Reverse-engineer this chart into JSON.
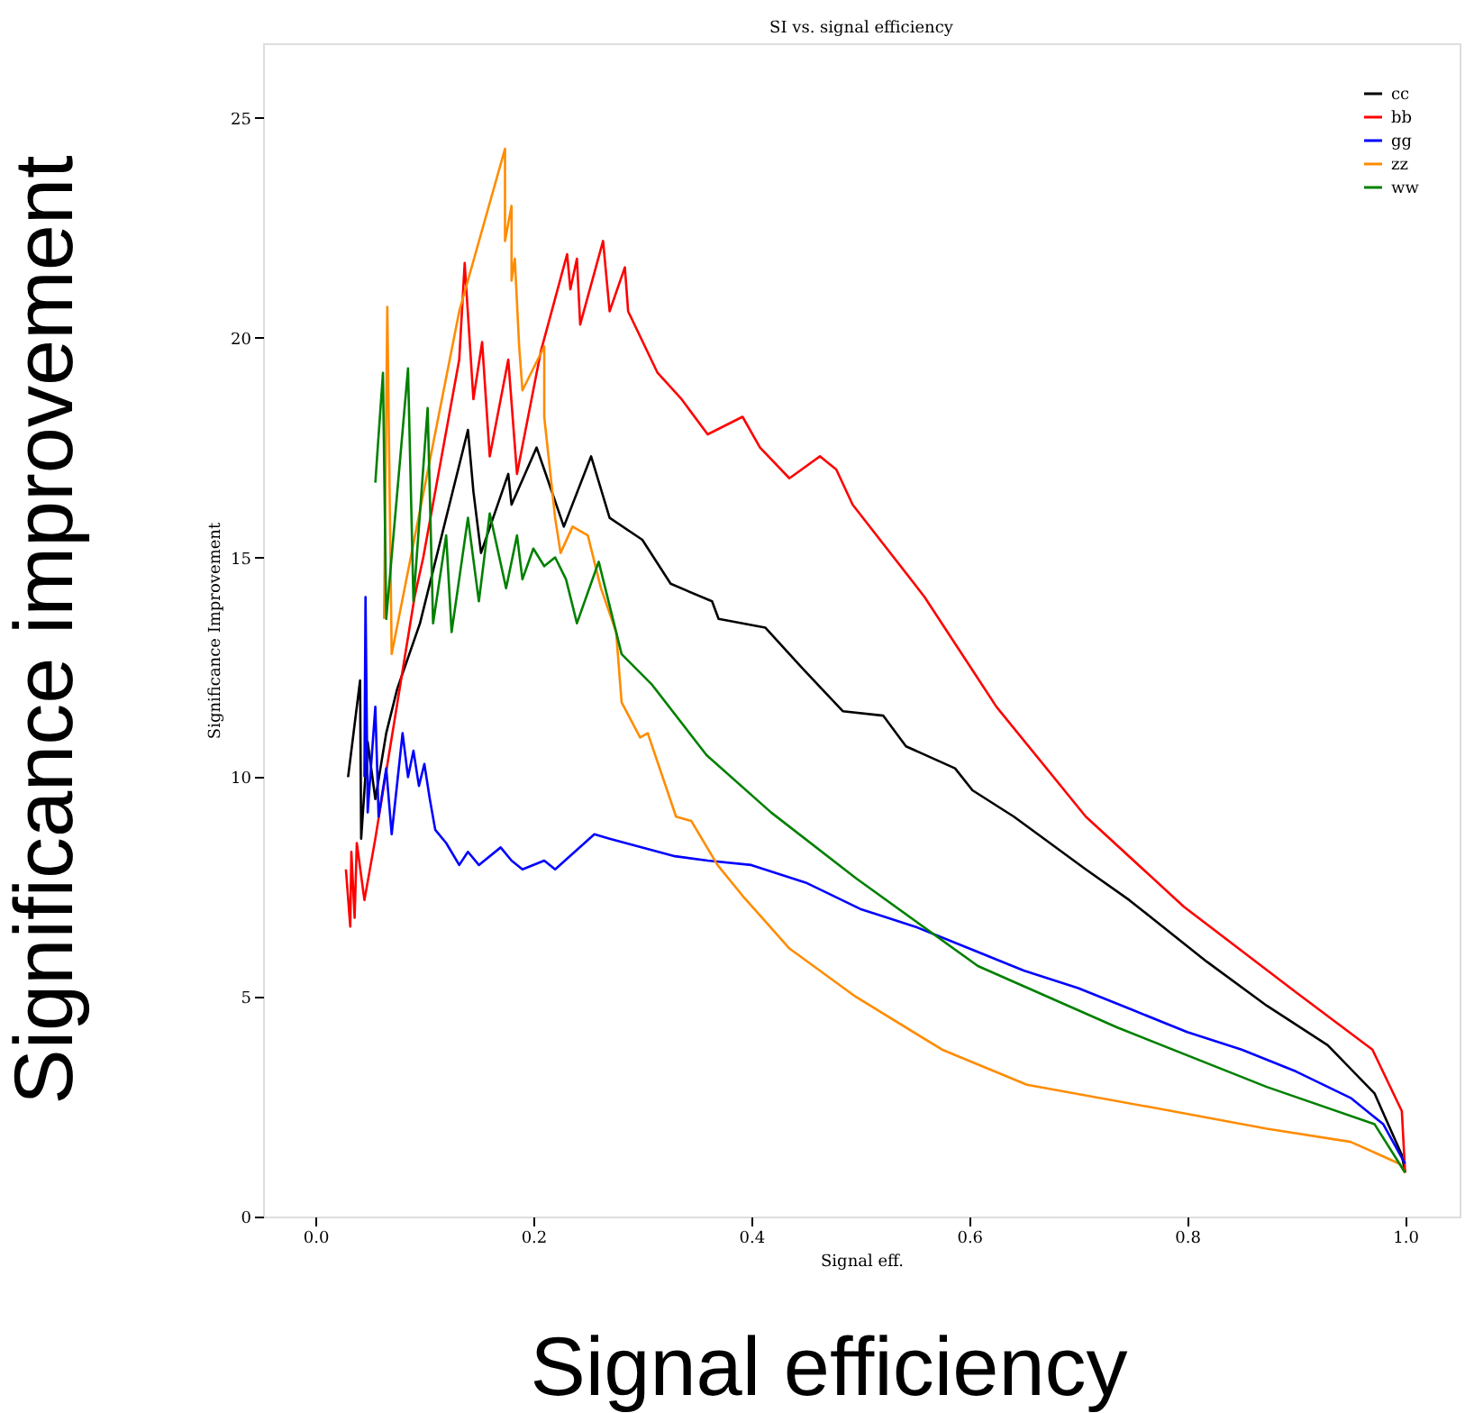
{
  "chart_data": {
    "type": "line",
    "title": "SI vs. signal efficiency",
    "xlabel": "Signal eff.",
    "ylabel": "Significance Improvement",
    "annotations": [
      "Significance improvement",
      "Signal efficiency"
    ],
    "xlim": [
      -0.048,
      1.05
    ],
    "ylim": [
      0,
      26.7
    ],
    "xticks": [
      {
        "value": 0,
        "label": "0.0"
      },
      {
        "value": 0.2,
        "label": "0.2"
      },
      {
        "value": 0.4,
        "label": "0.4"
      },
      {
        "value": 0.6,
        "label": "0.6"
      },
      {
        "value": 0.8,
        "label": "0.8"
      },
      {
        "value": 1,
        "label": "1.0"
      }
    ],
    "yticks": [
      0,
      5,
      10,
      15,
      20,
      25
    ],
    "grid": false,
    "legend": "top right",
    "marker": "none",
    "line_style": "solid",
    "series": [
      {
        "name": "cc",
        "color": "#000000",
        "x": [
          0.03,
          0.041,
          0.042,
          0.048,
          0.055,
          0.065,
          0.075,
          0.096,
          0.14,
          0.145,
          0.152,
          0.177,
          0.18,
          0.203,
          0.21,
          0.228,
          0.253,
          0.27,
          0.3,
          0.326,
          0.364,
          0.37,
          0.413,
          0.446,
          0.484,
          0.521,
          0.542,
          0.587,
          0.603,
          0.641,
          0.707,
          0.747,
          0.818,
          0.873,
          0.929,
          0.972,
          0.997,
          1.0
        ],
        "values": [
          10.0,
          12.2,
          8.6,
          10.8,
          9.5,
          11.0,
          12.0,
          13.5,
          17.9,
          16.5,
          15.1,
          16.9,
          16.2,
          17.5,
          17.0,
          15.7,
          17.3,
          15.9,
          15.4,
          14.4,
          14.0,
          13.6,
          13.4,
          12.5,
          11.5,
          11.4,
          10.7,
          10.2,
          9.7,
          9.1,
          7.9,
          7.2,
          5.8,
          4.8,
          3.9,
          2.8,
          1.4,
          1.0
        ]
      },
      {
        "name": "bb",
        "color": "#ff0000",
        "x": [
          0.028,
          0.032,
          0.033,
          0.036,
          0.038,
          0.045,
          0.055,
          0.091,
          0.099,
          0.132,
          0.137,
          0.145,
          0.153,
          0.16,
          0.177,
          0.185,
          0.207,
          0.231,
          0.234,
          0.24,
          0.243,
          0.264,
          0.27,
          0.284,
          0.287,
          0.314,
          0.336,
          0.36,
          0.392,
          0.408,
          0.435,
          0.463,
          0.478,
          0.493,
          0.559,
          0.625,
          0.707,
          0.797,
          0.9,
          0.97,
          0.997,
          1.0
        ],
        "values": [
          7.9,
          6.6,
          8.3,
          6.8,
          8.5,
          7.2,
          8.6,
          14.1,
          15.0,
          19.5,
          21.7,
          18.6,
          19.9,
          17.3,
          19.5,
          16.9,
          19.7,
          21.9,
          21.1,
          21.8,
          20.3,
          22.2,
          20.6,
          21.6,
          20.6,
          19.2,
          18.6,
          17.8,
          18.2,
          17.5,
          16.8,
          17.3,
          17.0,
          16.2,
          14.1,
          11.6,
          9.1,
          7.05,
          5.1,
          3.8,
          2.4,
          1.0
        ]
      },
      {
        "name": "gg",
        "color": "#0000ff",
        "x": [
          0.045,
          0.046,
          0.048,
          0.055,
          0.058,
          0.065,
          0.07,
          0.08,
          0.085,
          0.09,
          0.095,
          0.1,
          0.105,
          0.11,
          0.12,
          0.132,
          0.14,
          0.15,
          0.17,
          0.18,
          0.19,
          0.21,
          0.22,
          0.256,
          0.27,
          0.3,
          0.33,
          0.36,
          0.4,
          0.45,
          0.5,
          0.55,
          0.6,
          0.65,
          0.7,
          0.75,
          0.8,
          0.85,
          0.9,
          0.95,
          0.98,
          1.0
        ],
        "values": [
          10.0,
          14.1,
          9.2,
          11.6,
          9.1,
          10.2,
          8.7,
          11.0,
          10.0,
          10.6,
          9.8,
          10.3,
          9.5,
          8.8,
          8.5,
          8.0,
          8.3,
          8.0,
          8.4,
          8.1,
          7.9,
          8.1,
          7.9,
          8.7,
          8.6,
          8.4,
          8.2,
          8.1,
          8.0,
          7.6,
          7.0,
          6.6,
          6.1,
          5.6,
          5.2,
          4.7,
          4.2,
          3.8,
          3.3,
          2.7,
          2.1,
          1.2
        ]
      },
      {
        "name": "zz",
        "color": "#ff8c00",
        "x": [
          0.063,
          0.066,
          0.07,
          0.132,
          0.174,
          0.174,
          0.18,
          0.18,
          0.183,
          0.187,
          0.19,
          0.21,
          0.21,
          0.22,
          0.225,
          0.236,
          0.25,
          0.262,
          0.276,
          0.281,
          0.298,
          0.305,
          0.331,
          0.345,
          0.369,
          0.392,
          0.435,
          0.496,
          0.575,
          0.653,
          0.764,
          0.873,
          0.95,
          0.995,
          1.0
        ],
        "values": [
          13.6,
          20.7,
          12.8,
          20.6,
          24.3,
          22.2,
          23.0,
          21.3,
          21.8,
          19.8,
          18.8,
          19.8,
          18.2,
          15.9,
          15.1,
          15.7,
          15.5,
          14.3,
          13.3,
          11.7,
          10.9,
          11.0,
          9.1,
          9.0,
          8.0,
          7.3,
          6.1,
          5.0,
          3.8,
          3.0,
          2.5,
          2.0,
          1.7,
          1.2,
          1.0
        ]
      },
      {
        "name": "ww",
        "color": "#008000",
        "x": [
          0.055,
          0.062,
          0.065,
          0.085,
          0.09,
          0.103,
          0.108,
          0.12,
          0.125,
          0.14,
          0.15,
          0.16,
          0.175,
          0.185,
          0.19,
          0.2,
          0.21,
          0.22,
          0.23,
          0.24,
          0.25,
          0.26,
          0.27,
          0.281,
          0.309,
          0.359,
          0.418,
          0.496,
          0.608,
          0.736,
          0.873,
          0.972,
          1.0
        ],
        "values": [
          16.7,
          19.2,
          13.6,
          19.3,
          14.0,
          18.4,
          13.5,
          15.5,
          13.3,
          15.9,
          14.0,
          16.0,
          14.3,
          15.5,
          14.5,
          15.2,
          14.8,
          15.0,
          14.5,
          13.5,
          14.2,
          14.9,
          13.9,
          12.8,
          12.1,
          10.5,
          9.2,
          7.7,
          5.7,
          4.3,
          2.95,
          2.1,
          1.0
        ]
      }
    ]
  }
}
